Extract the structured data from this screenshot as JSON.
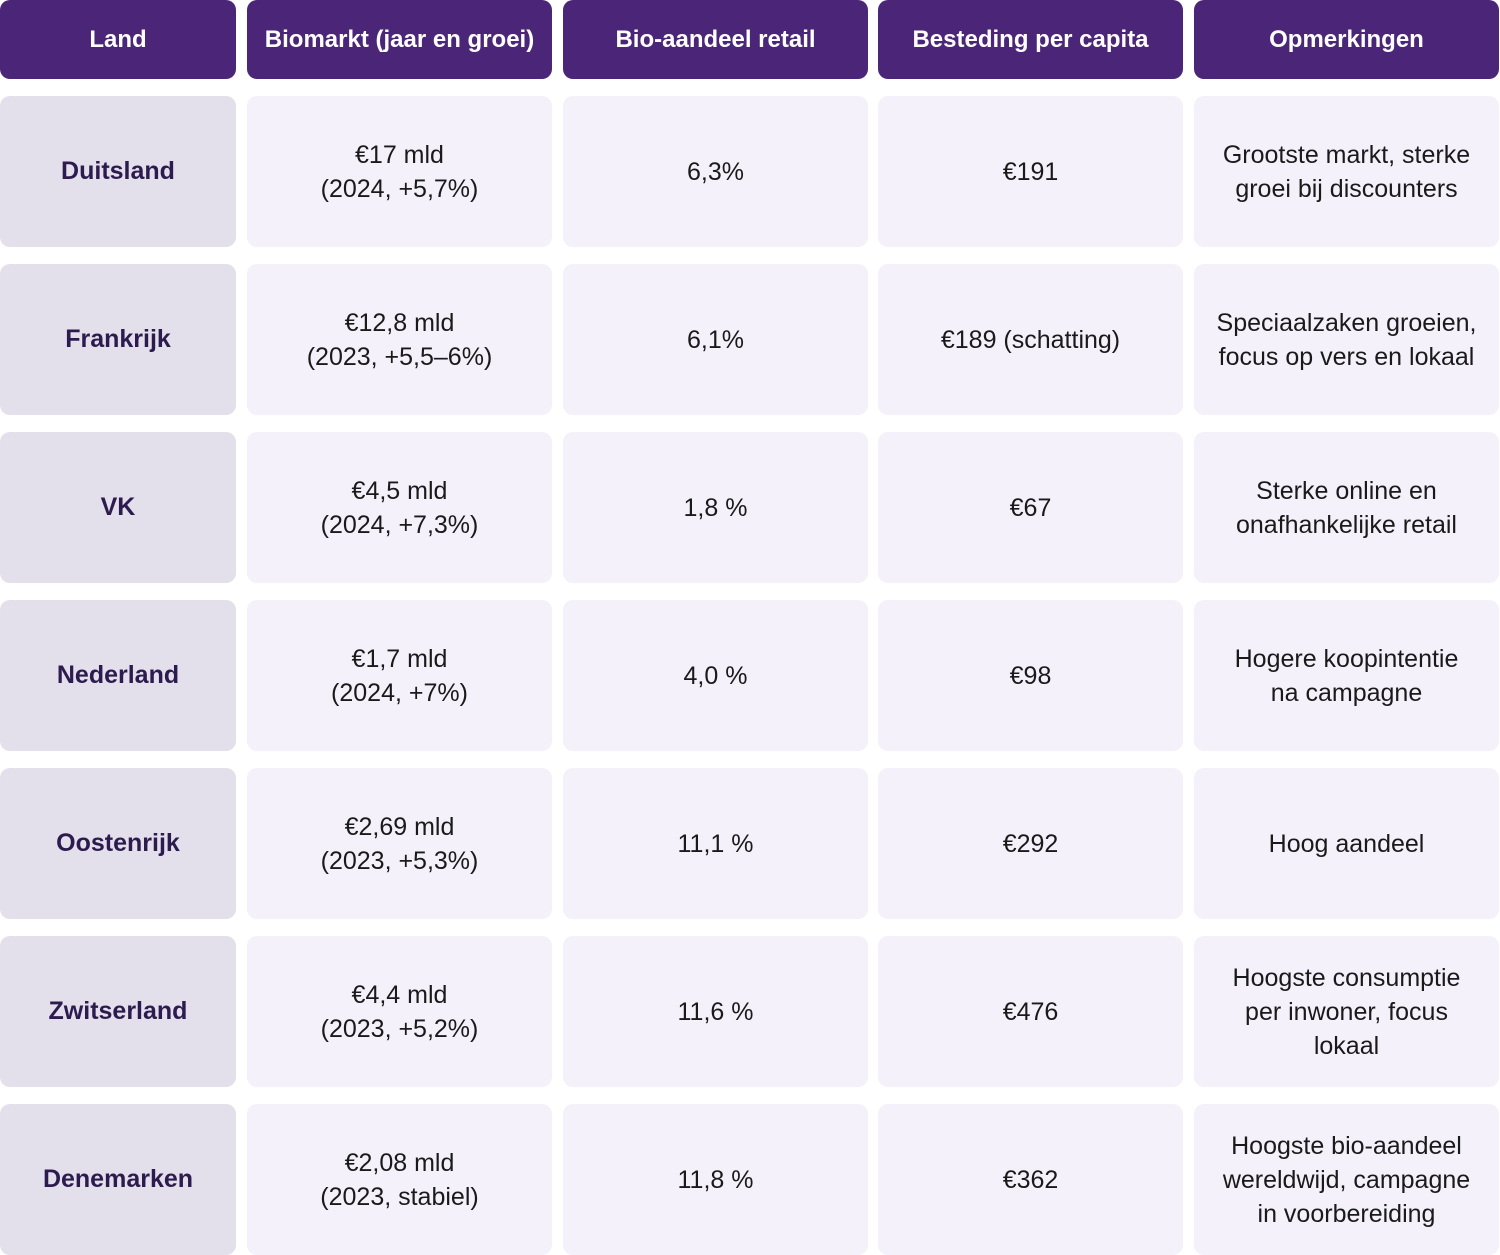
{
  "headers": [
    "Land",
    "Biomarkt (jaar en groei)",
    "Bio-aandeel retail",
    "Besteding per capita",
    "Opmerkingen"
  ],
  "rows": [
    {
      "land": "Duitsland",
      "markt_value": "€17 mld",
      "markt_detail": "(2024, +5,7%)",
      "aandeel": "6,3%",
      "besteding": "€191",
      "opmerkingen": "Grootste markt, sterke\ngroei bij discounters"
    },
    {
      "land": "Frankrijk",
      "markt_value": "€12,8 mld",
      "markt_detail": "(2023, +5,5–6%)",
      "aandeel": "6,1%",
      "besteding": "€189 (schatting)",
      "opmerkingen": "Speciaalzaken groeien,\nfocus op vers en lokaal"
    },
    {
      "land": "VK",
      "markt_value": "€4,5 mld",
      "markt_detail": "(2024, +7,3%)",
      "aandeel": "1,8 %",
      "besteding": "€67",
      "opmerkingen": "Sterke online en\nonafhankelijke retail"
    },
    {
      "land": "Nederland",
      "markt_value": "€1,7 mld",
      "markt_detail": "(2024, +7%)",
      "aandeel": "4,0 %",
      "besteding": "€98",
      "opmerkingen": "Hogere koopintentie\nna campagne"
    },
    {
      "land": "Oostenrijk",
      "markt_value": "€2,69 mld",
      "markt_detail": "(2023, +5,3%)",
      "aandeel": "11,1 %",
      "besteding": "€292",
      "opmerkingen": "Hoog aandeel"
    },
    {
      "land": "Zwitserland",
      "markt_value": "€4,4 mld",
      "markt_detail": "(2023, +5,2%)",
      "aandeel": "11,6 %",
      "besteding": "€476",
      "opmerkingen": "Hoogste consumptie\nper inwoner, focus\nlokaal"
    },
    {
      "land": "Denemarken",
      "markt_value": "€2,08 mld",
      "markt_detail": "(2023, stabiel)",
      "aandeel": "11,8 %",
      "besteding": "€362",
      "opmerkingen": "Hoogste bio-aandeel\nwereldwijd, campagne\nin voorbereiding"
    }
  ]
}
